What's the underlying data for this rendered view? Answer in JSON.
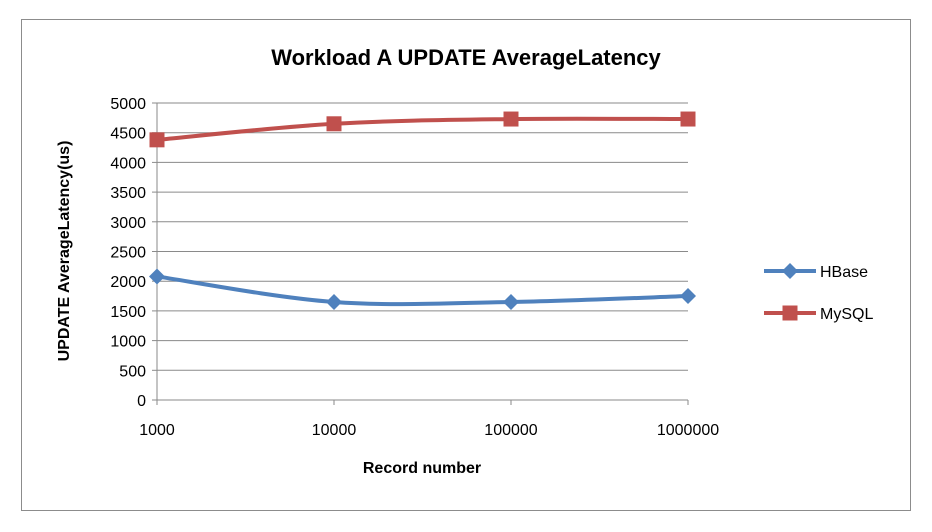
{
  "chart_data": {
    "type": "line",
    "title": "Workload A UPDATE AverageLatency",
    "xlabel": "Record number",
    "ylabel": "UPDATE AverageLatency(us)",
    "categories": [
      "1000",
      "10000",
      "100000",
      "1000000"
    ],
    "ylim": [
      0,
      5000
    ],
    "ystep": 500,
    "grid": true,
    "legend_position": "right",
    "series": [
      {
        "name": "HBase",
        "values": [
          2080,
          1650,
          1650,
          1750
        ],
        "color": "#4f81bd",
        "marker": "diamond"
      },
      {
        "name": "MySQL",
        "values": [
          4380,
          4650,
          4730,
          4730
        ],
        "color": "#c0504d",
        "marker": "square"
      }
    ]
  }
}
